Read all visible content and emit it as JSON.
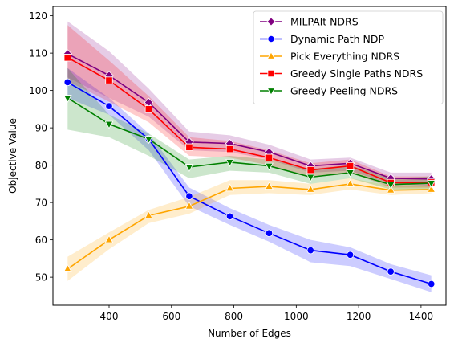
{
  "chart_data": {
    "type": "line",
    "title": "",
    "xlabel": "Number of Edges",
    "ylabel": "Objective Value",
    "xlim": [
      220,
      1480
    ],
    "ylim": [
      42.5,
      122.5
    ],
    "xticks": [
      400,
      600,
      800,
      1000,
      1200,
      1400
    ],
    "yticks": [
      50,
      60,
      70,
      80,
      90,
      100,
      110,
      120
    ],
    "grid": false,
    "legend_position": "top-right",
    "x": [
      267,
      400,
      527,
      657,
      787,
      913,
      1046,
      1173,
      1303,
      1433
    ],
    "series": [
      {
        "name": "MILPAlt NDRS",
        "color": "#800080",
        "marker": "diamond",
        "values": [
          109.8,
          104.0,
          96.8,
          86.2,
          85.8,
          83.5,
          79.8,
          80.5,
          76.5,
          76.3
        ],
        "band_upper": [
          118.5,
          110.5,
          100.5,
          89.0,
          88.0,
          85.5,
          81.5,
          82.0,
          78.0,
          78.0
        ],
        "band_lower": [
          103.5,
          98.0,
          93.0,
          84.0,
          83.5,
          81.5,
          78.0,
          78.5,
          75.0,
          74.5
        ]
      },
      {
        "name": "Dynamic Path NDP",
        "color": "#0000ff",
        "marker": "circle",
        "values": [
          102.2,
          95.8,
          87.0,
          71.7,
          66.3,
          61.8,
          57.2,
          56.0,
          51.5,
          48.2
        ],
        "band_upper": [
          106.0,
          98.0,
          88.5,
          74.0,
          68.5,
          64.0,
          60.0,
          58.0,
          53.5,
          50.5
        ],
        "band_lower": [
          98.0,
          93.5,
          84.0,
          69.0,
          64.0,
          59.5,
          54.0,
          53.0,
          49.5,
          46.0
        ]
      },
      {
        "name": "Pick Everything NDRS",
        "color": "#ffa500",
        "marker": "triangle-up",
        "values": [
          52.2,
          60.0,
          66.5,
          69.0,
          73.8,
          74.3,
          73.5,
          75.0,
          73.3,
          73.5
        ],
        "band_upper": [
          55.5,
          62.0,
          68.0,
          71.5,
          76.0,
          76.0,
          75.0,
          76.5,
          74.5,
          74.5
        ],
        "band_lower": [
          49.0,
          57.5,
          64.5,
          67.0,
          72.0,
          72.5,
          72.0,
          73.5,
          72.0,
          72.5
        ]
      },
      {
        "name": "Greedy Single Paths NDRS",
        "color": "#ff0000",
        "marker": "square",
        "values": [
          108.8,
          102.7,
          95.0,
          84.8,
          84.3,
          82.0,
          78.7,
          79.8,
          75.3,
          75.4
        ],
        "band_upper": [
          117.5,
          108.0,
          98.5,
          87.5,
          86.5,
          84.0,
          80.5,
          81.5,
          77.0,
          77.0
        ],
        "band_lower": [
          102.5,
          97.0,
          91.5,
          82.5,
          82.0,
          80.0,
          77.0,
          78.0,
          74.0,
          74.0
        ]
      },
      {
        "name": "Greedy Peeling NDRS",
        "color": "#008000",
        "marker": "triangle-down",
        "values": [
          98.0,
          91.0,
          87.0,
          79.5,
          80.8,
          79.8,
          76.8,
          78.0,
          74.8,
          75.2
        ],
        "band_upper": [
          106.0,
          93.5,
          88.5,
          81.5,
          82.5,
          81.5,
          79.0,
          80.0,
          76.5,
          77.0
        ],
        "band_lower": [
          89.5,
          87.5,
          82.5,
          76.5,
          78.5,
          78.0,
          75.0,
          76.5,
          73.5,
          73.5
        ]
      }
    ]
  }
}
